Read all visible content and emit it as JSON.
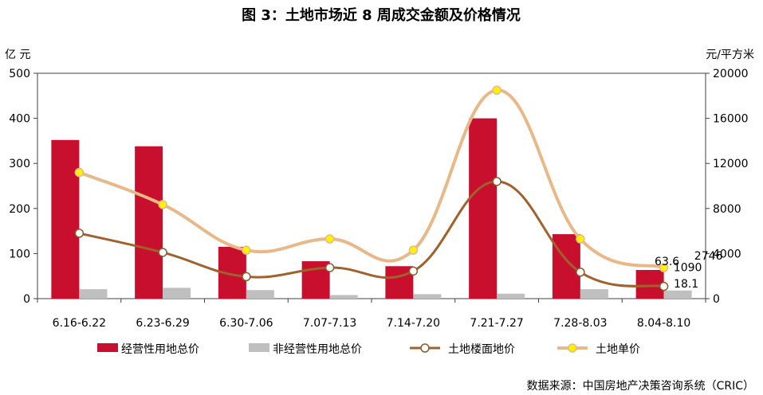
{
  "chart_data": {
    "type": "bar",
    "title": "图 3：土地市场近 8 周成交金额及价格情况",
    "y_left_unit": "亿 元",
    "y_right_unit": "元/平方米",
    "y_left_ticks": [
      "0",
      "100",
      "200",
      "300",
      "400",
      "500"
    ],
    "y_right_ticks": [
      "0",
      "4000",
      "8000",
      "12000",
      "16000",
      "20000"
    ],
    "ylim_left": [
      0,
      500
    ],
    "ylim_right": [
      0,
      20000
    ],
    "categories": [
      "6.16-6.22",
      "6.23-6.29",
      "6.30-7.06",
      "7.07-7.13",
      "7.14-7.20",
      "7.21-7.27",
      "7.28-8.03",
      "8.04-8.10"
    ],
    "series": [
      {
        "name": "经营性用地总价",
        "type": "bar",
        "axis": "left",
        "color": "#C8102E",
        "values": [
          352,
          338,
          115,
          83,
          72,
          400,
          143,
          63.6
        ]
      },
      {
        "name": "非经营性用地总价",
        "type": "bar",
        "axis": "left",
        "color": "#BFBFBF",
        "values": [
          21,
          24,
          19,
          8,
          10,
          11,
          21,
          18.1
        ]
      },
      {
        "name": "土地楼面地价",
        "type": "line",
        "axis": "right",
        "color": "#A0612D",
        "values": [
          5800,
          4100,
          1950,
          2750,
          2450,
          10400,
          2350,
          1090
        ]
      },
      {
        "name": "土地单价",
        "type": "line",
        "axis": "right",
        "color": "#E8B888",
        "values": [
          11200,
          8350,
          4300,
          5300,
          4300,
          18500,
          5300,
          2746
        ]
      }
    ],
    "data_labels": [
      "2746",
      "63.6",
      "1090",
      "18.1"
    ],
    "legend_position": "bottom",
    "grid": false,
    "source": "数据来源：中国房地产决策咨询系统（CRIC）"
  }
}
